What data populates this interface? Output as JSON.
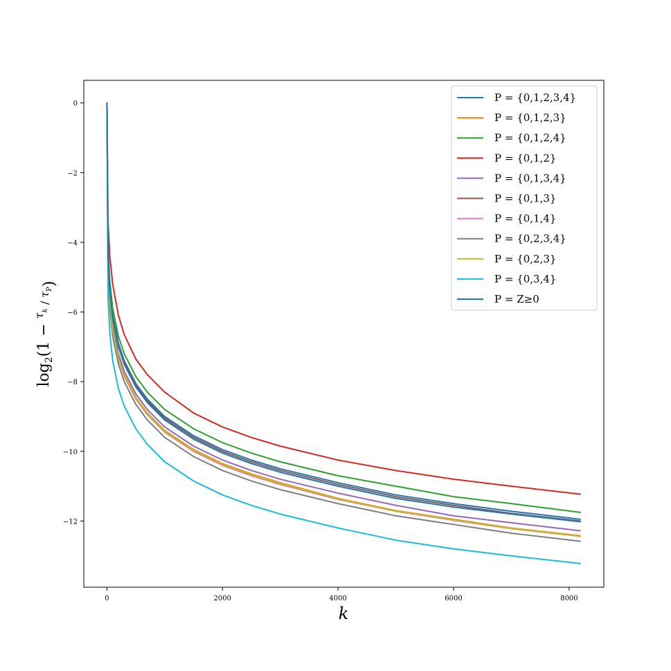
{
  "chart_data": {
    "type": "line",
    "xlabel": "k",
    "ylabel": "log2(1 − τk^P / τP)",
    "xlim": [
      -400,
      8600
    ],
    "ylim": [
      -13.9,
      0.65
    ],
    "x_ticks": [
      0,
      2000,
      4000,
      6000,
      8000
    ],
    "y_ticks": [
      0,
      -2,
      -4,
      -6,
      -8,
      -10,
      -12
    ],
    "x_tick_labels": [
      "0",
      "2000",
      "4000",
      "6000",
      "8000"
    ],
    "y_tick_labels": [
      "0",
      "−2",
      "−4",
      "−6",
      "−8",
      "−10",
      "−12"
    ],
    "legend_position": "top-right",
    "grid": false,
    "sample_x": [
      1,
      20,
      50,
      100,
      200,
      300,
      500,
      700,
      1000,
      1500,
      2000,
      2500,
      3000,
      4000,
      5000,
      6000,
      7000,
      8192
    ],
    "series": [
      {
        "name": "P = {0,1,2,3,4}",
        "color": "#1f77b4",
        "values": [
          0,
          -4.4,
          -5.3,
          -6.1,
          -6.9,
          -7.4,
          -8.05,
          -8.5,
          -9.0,
          -9.55,
          -9.95,
          -10.25,
          -10.5,
          -10.9,
          -11.25,
          -11.5,
          -11.72,
          -11.95
        ]
      },
      {
        "name": "P = {0,1,2,3}",
        "color": "#ff7f0e",
        "values": [
          0,
          -4.7,
          -5.7,
          -6.5,
          -7.3,
          -7.8,
          -8.45,
          -8.9,
          -9.4,
          -9.95,
          -10.35,
          -10.65,
          -10.9,
          -11.35,
          -11.7,
          -11.95,
          -12.2,
          -12.42
        ]
      },
      {
        "name": "P = {0,1,2,4}",
        "color": "#2ca02c",
        "values": [
          0,
          -4.2,
          -5.1,
          -5.9,
          -6.7,
          -7.2,
          -7.85,
          -8.3,
          -8.8,
          -9.35,
          -9.75,
          -10.05,
          -10.3,
          -10.7,
          -11.0,
          -11.3,
          -11.5,
          -11.75
        ]
      },
      {
        "name": "P = {0,1,2}",
        "color": "#d62728",
        "values": [
          0,
          -3.4,
          -4.4,
          -5.2,
          -6.1,
          -6.65,
          -7.35,
          -7.8,
          -8.3,
          -8.9,
          -9.3,
          -9.6,
          -9.85,
          -10.25,
          -10.55,
          -10.8,
          -11.0,
          -11.23
        ]
      },
      {
        "name": "P = {0,1,3,4}",
        "color": "#9467bd",
        "values": [
          0,
          -4.6,
          -5.6,
          -6.4,
          -7.2,
          -7.7,
          -8.35,
          -8.8,
          -9.3,
          -9.85,
          -10.25,
          -10.55,
          -10.8,
          -11.2,
          -11.55,
          -11.85,
          -12.05,
          -12.28
        ]
      },
      {
        "name": "P = {0,1,3}",
        "color": "#8c564b",
        "values": [
          0,
          -4.4,
          -5.35,
          -6.15,
          -6.95,
          -7.45,
          -8.1,
          -8.55,
          -9.05,
          -9.6,
          -10.0,
          -10.3,
          -10.55,
          -10.95,
          -11.3,
          -11.55,
          -11.78,
          -12.0
        ]
      },
      {
        "name": "P = {0,1,4}",
        "color": "#e377c2",
        "values": [
          0,
          -4.75,
          -5.75,
          -6.55,
          -7.35,
          -7.85,
          -8.5,
          -8.95,
          -9.45,
          -10.0,
          -10.4,
          -10.7,
          -10.95,
          -11.38,
          -11.72,
          -11.98,
          -12.22,
          -12.44
        ]
      },
      {
        "name": "P = {0,2,3,4}",
        "color": "#7f7f7f",
        "values": [
          0,
          -4.9,
          -5.9,
          -6.7,
          -7.5,
          -8.0,
          -8.65,
          -9.1,
          -9.6,
          -10.15,
          -10.55,
          -10.85,
          -11.1,
          -11.5,
          -11.85,
          -12.1,
          -12.35,
          -12.58
        ]
      },
      {
        "name": "P = {0,2,3}",
        "color": "#bcbd22",
        "values": [
          0,
          -4.72,
          -5.72,
          -6.52,
          -7.32,
          -7.82,
          -8.47,
          -8.92,
          -9.42,
          -9.97,
          -10.37,
          -10.67,
          -10.92,
          -11.36,
          -11.71,
          -11.96,
          -12.21,
          -12.43
        ]
      },
      {
        "name": "P = {0,3,4}",
        "color": "#17becf",
        "values": [
          0,
          -5.6,
          -6.6,
          -7.4,
          -8.2,
          -8.7,
          -9.35,
          -9.8,
          -10.3,
          -10.85,
          -11.25,
          -11.55,
          -11.8,
          -12.2,
          -12.55,
          -12.8,
          -13.0,
          -13.22
        ]
      },
      {
        "name": "P = Z≥0",
        "color": "#1f77b4",
        "values": [
          0,
          -4.45,
          -5.4,
          -6.2,
          -7.0,
          -7.5,
          -8.15,
          -8.6,
          -9.1,
          -9.65,
          -10.05,
          -10.35,
          -10.6,
          -11.0,
          -11.35,
          -11.6,
          -11.8,
          -12.02
        ]
      }
    ]
  }
}
